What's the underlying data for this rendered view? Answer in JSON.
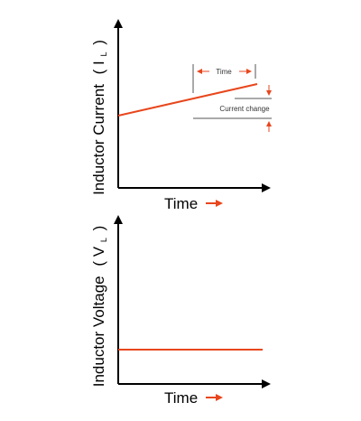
{
  "colors": {
    "axis": "#000000",
    "signal": "#e8461c",
    "annotation": "#555555"
  },
  "top_chart": {
    "ylabel_prefix": "Inductor Current",
    "ylabel_open": "( I",
    "ylabel_subscript": "L",
    "ylabel_close": ")",
    "xlabel": "Time",
    "xlabel_arrow": "→",
    "annotation_time": "Time",
    "annotation_current_change": "Current change"
  },
  "bottom_chart": {
    "ylabel_prefix": "Inductor Voltage",
    "ylabel_open": "( V",
    "ylabel_subscript": "L",
    "ylabel_close": ")",
    "xlabel": "Time",
    "xlabel_arrow": "→"
  }
}
